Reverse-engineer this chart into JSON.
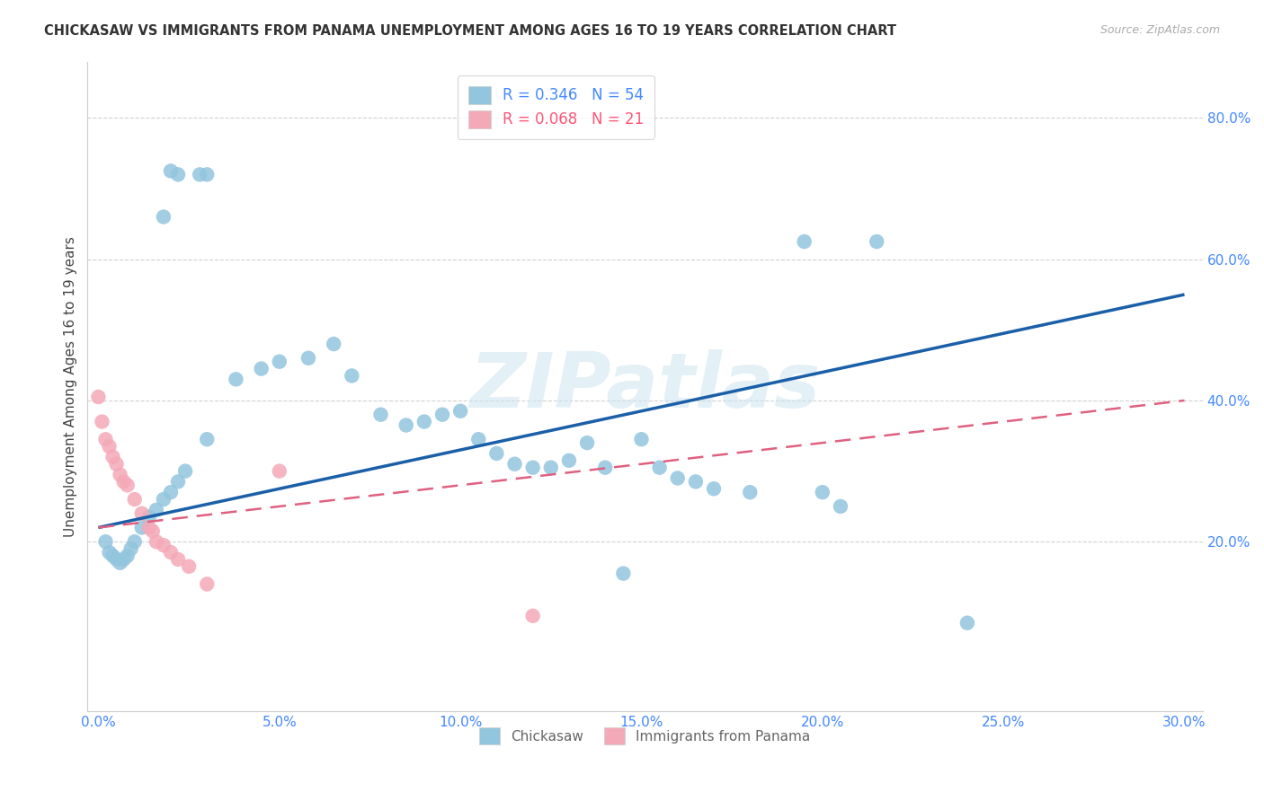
{
  "title": "CHICKASAW VS IMMIGRANTS FROM PANAMA UNEMPLOYMENT AMONG AGES 16 TO 19 YEARS CORRELATION CHART",
  "source": "Source: ZipAtlas.com",
  "ylabel": "Unemployment Among Ages 16 to 19 years",
  "xlim_min": -0.003,
  "xlim_max": 0.305,
  "ylim_min": -0.04,
  "ylim_max": 0.88,
  "xticks": [
    0.0,
    0.05,
    0.1,
    0.15,
    0.2,
    0.25,
    0.3
  ],
  "xticklabels": [
    "0.0%",
    "5.0%",
    "10.0%",
    "15.0%",
    "20.0%",
    "25.0%",
    "30.0%"
  ],
  "yticks": [
    0.2,
    0.4,
    0.6,
    0.8
  ],
  "yticklabels": [
    "20.0%",
    "40.0%",
    "60.0%",
    "80.0%"
  ],
  "watermark": "ZIPatlas",
  "blue_color": "#92c5de",
  "pink_color": "#f4a9b8",
  "blue_line_color": "#1a5fa8",
  "pink_line_color": "#e06080",
  "axis_tick_color": "#4488ff",
  "grid_color": "#cccccc",
  "title_color": "#333333",
  "source_color": "#aaaaaa",
  "ylabel_color": "#444444",
  "blue_line_x": [
    0.0,
    0.3
  ],
  "blue_line_y": [
    0.22,
    0.55
  ],
  "pink_line_x": [
    0.0,
    0.3
  ],
  "pink_line_y": [
    0.22,
    0.4
  ],
  "chickasaw_x": [
    0.02,
    0.022,
    0.028,
    0.03,
    0.018,
    0.195,
    0.215,
    0.002,
    0.003,
    0.004,
    0.005,
    0.006,
    0.007,
    0.008,
    0.009,
    0.01,
    0.012,
    0.014,
    0.016,
    0.018,
    0.02,
    0.022,
    0.024,
    0.03,
    0.038,
    0.045,
    0.05,
    0.058,
    0.065,
    0.07,
    0.078,
    0.085,
    0.09,
    0.095,
    0.1,
    0.105,
    0.11,
    0.115,
    0.12,
    0.125,
    0.13,
    0.135,
    0.14,
    0.15,
    0.155,
    0.16,
    0.165,
    0.17,
    0.18,
    0.2,
    0.205,
    0.24,
    0.145
  ],
  "chickasaw_y": [
    0.725,
    0.72,
    0.72,
    0.72,
    0.66,
    0.625,
    0.625,
    0.2,
    0.185,
    0.18,
    0.175,
    0.17,
    0.175,
    0.18,
    0.19,
    0.2,
    0.22,
    0.235,
    0.245,
    0.26,
    0.27,
    0.285,
    0.3,
    0.345,
    0.43,
    0.445,
    0.455,
    0.46,
    0.48,
    0.435,
    0.38,
    0.365,
    0.37,
    0.38,
    0.385,
    0.345,
    0.325,
    0.31,
    0.305,
    0.305,
    0.315,
    0.34,
    0.305,
    0.345,
    0.305,
    0.29,
    0.285,
    0.275,
    0.27,
    0.27,
    0.25,
    0.085,
    0.155
  ],
  "panama_x": [
    0.0,
    0.001,
    0.002,
    0.003,
    0.004,
    0.005,
    0.006,
    0.007,
    0.008,
    0.01,
    0.012,
    0.014,
    0.015,
    0.016,
    0.018,
    0.02,
    0.022,
    0.025,
    0.03,
    0.05,
    0.12
  ],
  "panama_y": [
    0.405,
    0.37,
    0.345,
    0.335,
    0.32,
    0.31,
    0.295,
    0.285,
    0.28,
    0.26,
    0.24,
    0.22,
    0.215,
    0.2,
    0.195,
    0.185,
    0.175,
    0.165,
    0.14,
    0.3,
    0.095
  ]
}
